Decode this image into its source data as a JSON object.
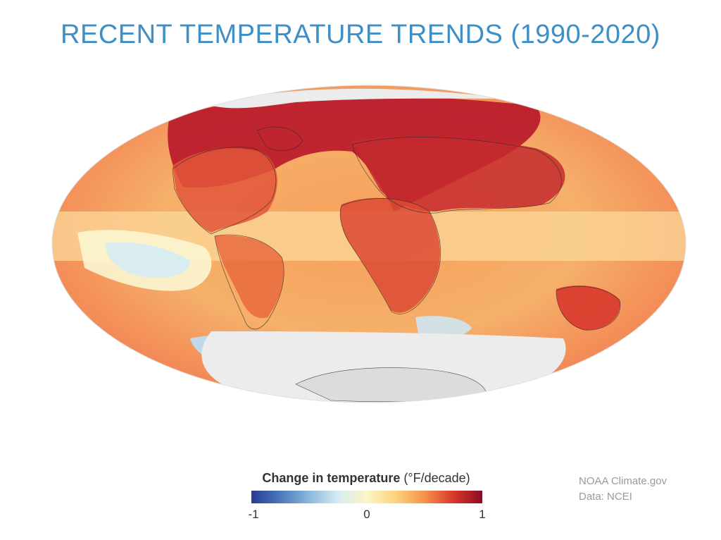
{
  "title": "RECENT TEMPERATURE TRENDS (1990-2020)",
  "legend": {
    "label": "Change in temperature",
    "unit": "(°F/decade)",
    "ticks": [
      "-1",
      "0",
      "1"
    ],
    "min": -1,
    "max": 1,
    "colors": [
      "#2b3a93",
      "#4a78bd",
      "#8ab8dc",
      "#d5ebf3",
      "#fbf6c6",
      "#fdd27c",
      "#f6924a",
      "#d9382c",
      "#8a0b24"
    ]
  },
  "credit": {
    "line1": "NOAA Climate.gov",
    "line2": "Data: NCEI"
  },
  "map": {
    "projection": "Robinson-like elliptical world map",
    "no_data_color": "#ececec",
    "land_color": "#dcdcdc",
    "ocean_base_color": "#f6924a"
  }
}
